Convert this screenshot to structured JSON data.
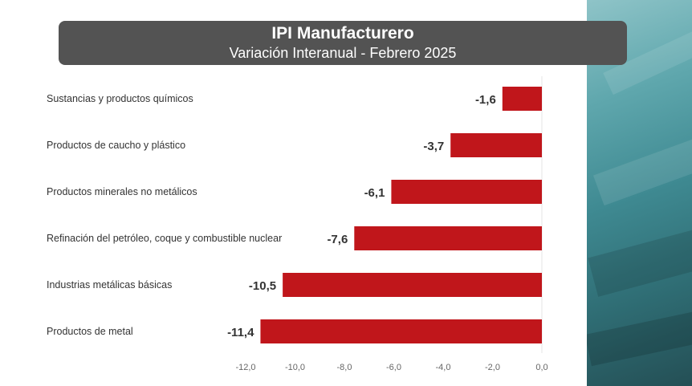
{
  "header": {
    "title": "IPI Manufacturero",
    "subtitle": "Variación Interanual - Febrero 2025"
  },
  "colors": {
    "bar": "#c0161b",
    "header_bg": "#535353",
    "panel": "#3f8a92"
  },
  "chart_data": {
    "type": "bar",
    "orientation": "horizontal",
    "title": "IPI Manufacturero",
    "subtitle": "Variación Interanual - Febrero 2025",
    "categories": [
      "Sustancias y productos químicos",
      "Productos de caucho y plástico",
      "Productos minerales no metálicos",
      "Refinación del petróleo, coque y combustible nuclear",
      "Industrias metálicas básicas",
      "Productos de metal"
    ],
    "values": [
      -1.6,
      -3.7,
      -6.1,
      -7.6,
      -10.5,
      -11.4
    ],
    "value_labels": [
      "-1,6",
      "-3,7",
      "-6,1",
      "-7,6",
      "-10,5",
      "-11,4"
    ],
    "xlim": [
      -12,
      0
    ],
    "x_ticks": [
      -12,
      -10,
      -8,
      -6,
      -4,
      -2,
      0
    ],
    "x_tick_labels": [
      "-12,0",
      "-10,0",
      "-8,0",
      "-6,0",
      "-4,0",
      "-2,0",
      "0,0"
    ],
    "grid": false,
    "legend": "none"
  }
}
